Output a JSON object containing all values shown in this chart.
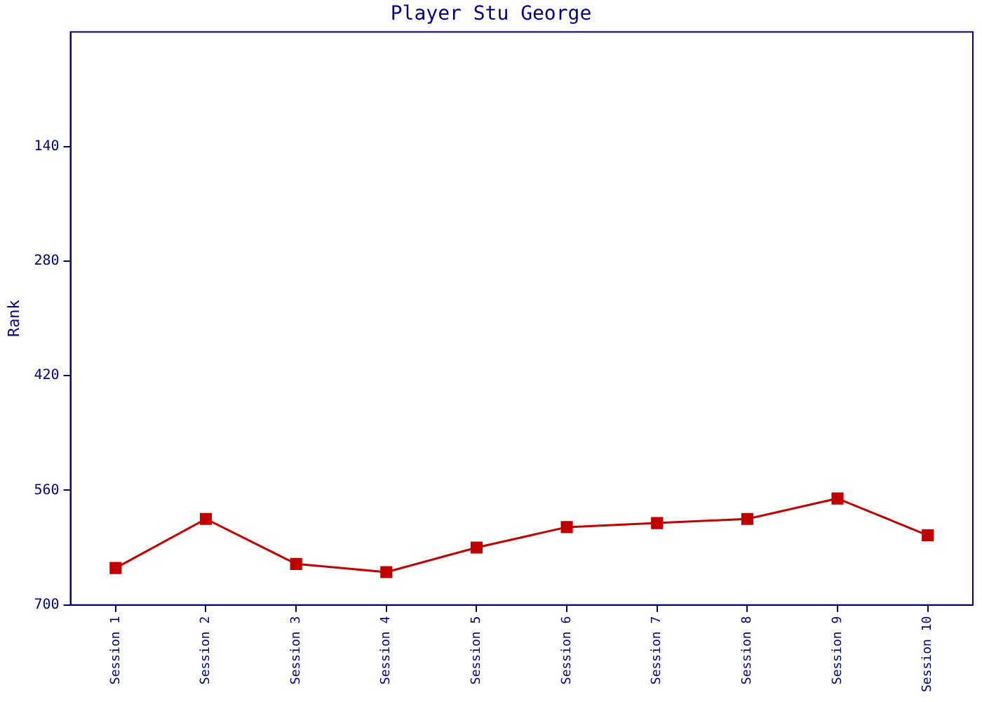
{
  "chart_data": {
    "type": "line",
    "title": "Player Stu George",
    "ylabel": "Rank",
    "categories": [
      "Session 1",
      "Session 2",
      "Session 3",
      "Session 4",
      "Session 5",
      "Session 6",
      "Session 7",
      "Session 8",
      "Session 9",
      "Session 10"
    ],
    "series": [
      {
        "color": "#c00000",
        "values": [
          655,
          595,
          650,
          660,
          630,
          605,
          600,
          595,
          570,
          615
        ]
      }
    ],
    "ylim": [
      700,
      0
    ],
    "yticks": [
      140,
      280,
      420,
      560,
      700
    ],
    "grid": false,
    "legend": false,
    "marker": "square",
    "line_style": "solid"
  }
}
